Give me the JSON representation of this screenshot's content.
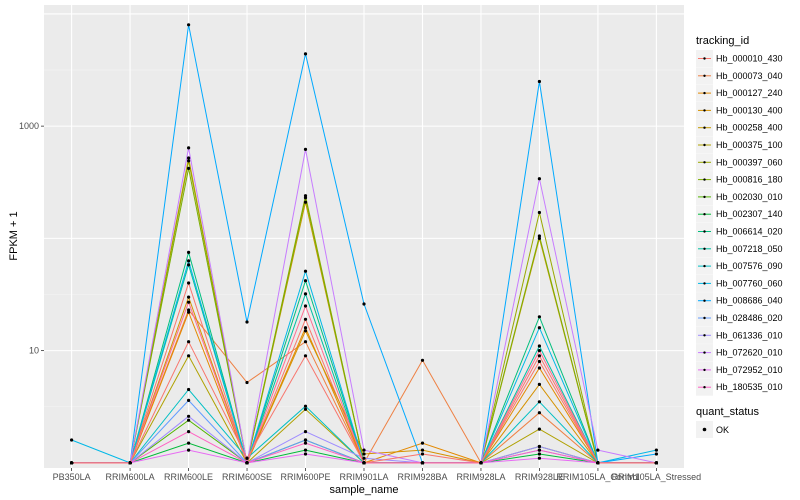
{
  "chart_data": {
    "type": "line",
    "title": "",
    "xlabel": "sample_name",
    "ylabel": "FPKM + 1",
    "y_scale": "log10",
    "ylim": [
      0.9,
      12000
    ],
    "y_ticks": [
      10,
      1000
    ],
    "y_tick_labels": [
      "10",
      "1000"
    ],
    "grid": true,
    "point_legend_title": "quant_status",
    "point_legend_entries": [
      "OK"
    ],
    "legend_title": "tracking_id",
    "legend_position": "right",
    "categories": [
      "PB350LA",
      "RRIM600LA",
      "RRIM600LE",
      "RRIM600SE",
      "RRIM600PE",
      "RRIM901LA",
      "RRIM928BA",
      "RRIM928LA",
      "RRIM928LE",
      "RRIM105LA_Control",
      "RRIM105LA_Stressed"
    ],
    "series": [
      {
        "name": "Hb_000010_430",
        "color": "#F8766D",
        "values": [
          1,
          1,
          40,
          1,
          19,
          1,
          1,
          1,
          9,
          1,
          1
        ]
      },
      {
        "name": "Hb_000073_040",
        "color": "#EE8043",
        "values": [
          1,
          1,
          23,
          5.2,
          12,
          1,
          8.2,
          1,
          2.8,
          1,
          1
        ]
      },
      {
        "name": "Hb_000127_240",
        "color": "#E38900",
        "values": [
          1,
          1,
          22,
          1,
          16,
          1,
          1.5,
          1,
          7,
          1,
          1
        ]
      },
      {
        "name": "Hb_000130_400",
        "color": "#D59100",
        "values": [
          1,
          1,
          30,
          1,
          15,
          1.2,
          1.3,
          1,
          5,
          1,
          1
        ]
      },
      {
        "name": "Hb_000258_400",
        "color": "#C49A00",
        "values": [
          1,
          1,
          520,
          1,
          210,
          1,
          1,
          1,
          100,
          1,
          1
        ]
      },
      {
        "name": "Hb_000375_100",
        "color": "#B0A100",
        "values": [
          1,
          1,
          9,
          1,
          3,
          1,
          1,
          1,
          2,
          1,
          1
        ]
      },
      {
        "name": "Hb_000397_060",
        "color": "#99A800",
        "values": [
          1,
          1,
          490,
          1,
          240,
          1,
          1,
          1,
          170,
          1,
          1
        ]
      },
      {
        "name": "Hb_000816_180",
        "color": "#7CAE00",
        "values": [
          1,
          1,
          420,
          1,
          230,
          1,
          1,
          1,
          105,
          1,
          1
        ]
      },
      {
        "name": "Hb_002030_010",
        "color": "#53B400",
        "values": [
          1,
          1,
          2.4,
          1,
          1.6,
          1,
          1,
          1,
          1.4,
          1,
          1
        ]
      },
      {
        "name": "Hb_002307_140",
        "color": "#00BA38",
        "values": [
          1,
          1,
          1.5,
          1,
          1.3,
          1,
          1,
          1,
          1.2,
          1,
          1
        ]
      },
      {
        "name": "Hb_006614_020",
        "color": "#00BF7D",
        "values": [
          1,
          1,
          75,
          1,
          42,
          1,
          1,
          1,
          20,
          1,
          1
        ]
      },
      {
        "name": "Hb_007218_050",
        "color": "#00C0A3",
        "values": [
          1,
          1,
          58,
          1,
          32,
          1,
          1,
          1,
          11,
          1,
          1
        ]
      },
      {
        "name": "Hb_007576_090",
        "color": "#00BFC4",
        "values": [
          1,
          1,
          4.5,
          1.1,
          3.2,
          1,
          1,
          1,
          3.5,
          1,
          1
        ]
      },
      {
        "name": "Hb_007760_060",
        "color": "#00B8E7",
        "values": [
          1.6,
          1,
          63,
          1,
          51,
          1,
          1,
          1,
          16,
          1,
          1.3
        ]
      },
      {
        "name": "Hb_008686_040",
        "color": "#00A9FF",
        "values": [
          1,
          1,
          8000,
          18,
          4400,
          26,
          1,
          1,
          2500,
          1,
          1.2
        ]
      },
      {
        "name": "Hb_028486_020",
        "color": "#619CFF",
        "values": [
          1,
          1,
          3.6,
          1,
          1.6,
          1,
          1,
          1,
          1.3,
          1,
          1
        ]
      },
      {
        "name": "Hb_061336_010",
        "color": "#9F8CFF",
        "values": [
          1,
          1,
          2.6,
          1,
          1.9,
          1.1,
          1,
          1,
          1.4,
          1,
          1
        ]
      },
      {
        "name": "Hb_072620_010",
        "color": "#C77CFF",
        "values": [
          1,
          1,
          640,
          1,
          620,
          1.3,
          1,
          1,
          340,
          1.3,
          1
        ]
      },
      {
        "name": "Hb_072952_010",
        "color": "#E76BF3",
        "values": [
          1,
          1,
          1.3,
          1,
          1.2,
          1,
          1,
          1,
          1.1,
          1,
          1
        ]
      },
      {
        "name": "Hb_180535_010",
        "color": "#FF61C3",
        "values": [
          1,
          1,
          1.9,
          1,
          1.5,
          1,
          1,
          1,
          1.3,
          1,
          1
        ]
      },
      {
        "name": "",
        "color": "#FF6C91",
        "values": [
          1,
          1,
          27,
          1,
          25,
          1,
          1,
          1,
          10,
          1,
          1
        ]
      },
      {
        "name": "",
        "color": "#F8766D",
        "values": [
          1,
          1,
          12,
          1.1,
          9,
          1,
          1.2,
          1,
          8,
          1,
          1
        ]
      }
    ]
  }
}
